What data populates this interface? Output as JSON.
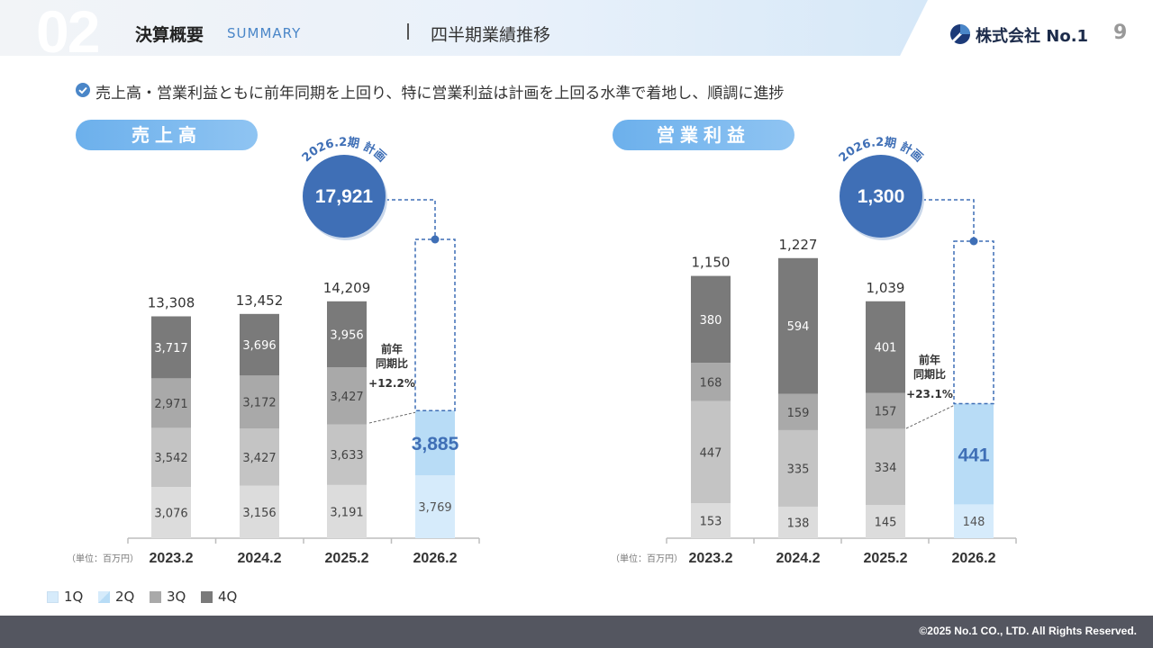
{
  "header": {
    "section_number": "02",
    "section_title": "決算概要",
    "section_subtitle": "SUMMARY",
    "topic": "四半期業績推移",
    "company": "株式会社 No.1",
    "page": "9"
  },
  "summary": "売上高・営業利益ともに前年同期を上回り、特に営業利益は計画を上回る水準で着地し、順調に進捗",
  "colors": {
    "q1": "#dcdcdc",
    "q2": "#c4c4c4",
    "q3": "#a9a9a9",
    "q4": "#7a7a7a",
    "q1_current": "#d6ebfb",
    "q2_current": "#b8dcf6",
    "plan": "#3f6fb6",
    "accent": "#4a86c8"
  },
  "chart_data": [
    {
      "type": "bar",
      "title": "売上高",
      "unit_note": "（単位：百万円）",
      "categories": [
        "2023.2",
        "2024.2",
        "2025.2",
        "2026.2"
      ],
      "series": [
        {
          "name": "1Q",
          "values": [
            3076,
            3156,
            3191,
            3769
          ]
        },
        {
          "name": "2Q",
          "values": [
            3542,
            3427,
            3633,
            null
          ]
        },
        {
          "name": "3Q",
          "values": [
            2971,
            3172,
            3427,
            null
          ]
        },
        {
          "name": "4Q",
          "values": [
            3717,
            3696,
            3956,
            null
          ]
        }
      ],
      "totals": [
        "13,308",
        "13,452",
        "14,209",
        null
      ],
      "current_cumulative": "3,885",
      "plan": {
        "label": "2026.2期 計画",
        "value": "17,921",
        "amount": 17921
      },
      "yoy": {
        "line1": "前年",
        "line2": "同期比",
        "value": "+12.2%"
      },
      "ylim": [
        0,
        17921
      ]
    },
    {
      "type": "bar",
      "title": "営業利益",
      "unit_note": "（単位：百万円）",
      "categories": [
        "2023.2",
        "2024.2",
        "2025.2",
        "2026.2"
      ],
      "series": [
        {
          "name": "1Q",
          "values": [
            153,
            138,
            145,
            148
          ]
        },
        {
          "name": "2Q",
          "values": [
            447,
            335,
            334,
            null
          ]
        },
        {
          "name": "3Q",
          "values": [
            168,
            159,
            157,
            null
          ]
        },
        {
          "name": "4Q",
          "values": [
            380,
            594,
            401,
            null
          ]
        }
      ],
      "totals": [
        "1,150",
        "1,227",
        "1,039",
        null
      ],
      "current_cumulative": "441",
      "plan": {
        "label": "2026.2期 計画",
        "value": "1,300",
        "amount": 1300
      },
      "yoy": {
        "line1": "前年",
        "line2": "同期比",
        "value": "+23.1%"
      },
      "ylim": [
        0,
        1300
      ]
    }
  ],
  "legend": [
    "1Q",
    "2Q",
    "3Q",
    "4Q"
  ],
  "footer": "©2025 No.1 CO., LTD. All Rights Reserved."
}
